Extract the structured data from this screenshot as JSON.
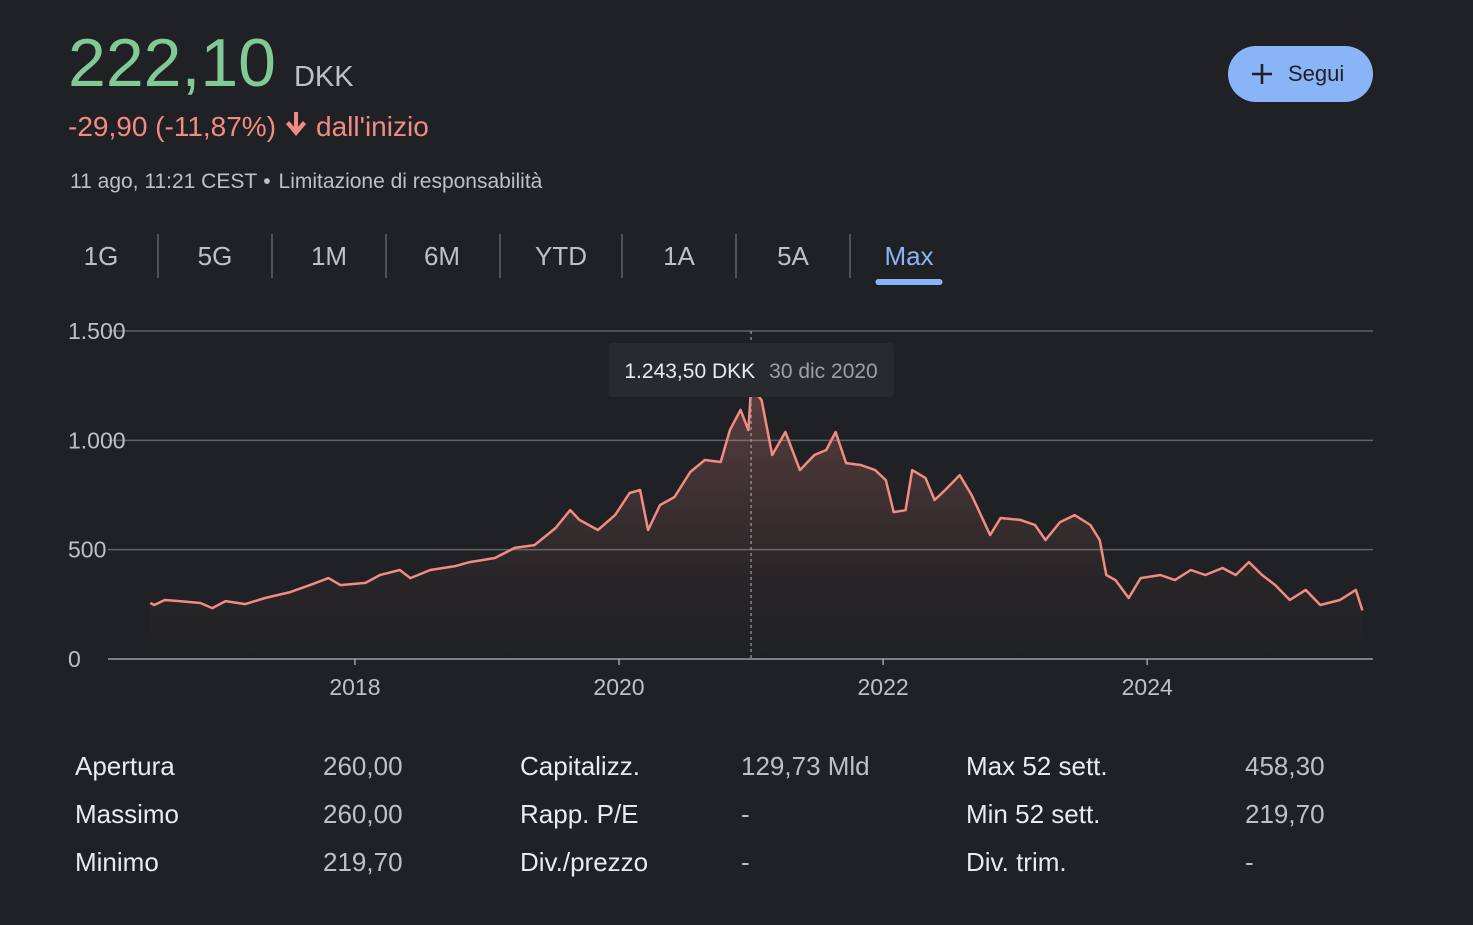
{
  "header": {
    "price": "222,10",
    "currency": "DKK",
    "change": "-29,90 (-11,87%)",
    "period": "dall'inizio",
    "timestamp": "11 ago, 11:21 CEST",
    "separator": "•",
    "disclaimer": "Limitazione di responsabilità"
  },
  "follow_button": "Segui",
  "tabs": [
    "1G",
    "5G",
    "1M",
    "6M",
    "YTD",
    "1A",
    "5A",
    "Max"
  ],
  "active_tab": "Max",
  "chart_data": {
    "type": "line",
    "color": "#f28b82",
    "x": [
      2016.45,
      2016.48,
      2016.56,
      2016.67,
      2016.83,
      2016.92,
      2017.02,
      2017.17,
      2017.32,
      2017.51,
      2017.66,
      2017.8,
      2017.89,
      2018.08,
      2018.19,
      2018.34,
      2018.42,
      2018.57,
      2018.76,
      2018.87,
      2019.06,
      2019.21,
      2019.36,
      2019.52,
      2019.63,
      2019.7,
      2019.84,
      2019.97,
      2020.08,
      2020.16,
      2020.22,
      2020.31,
      2020.42,
      2020.54,
      2020.65,
      2020.77,
      2020.84,
      2020.92,
      2020.98,
      2021.0,
      2021.08,
      2021.16,
      2021.26,
      2021.37,
      2021.48,
      2021.57,
      2021.64,
      2021.72,
      2021.83,
      2021.94,
      2022.02,
      2022.08,
      2022.17,
      2022.22,
      2022.32,
      2022.39,
      2022.47,
      2022.58,
      2022.67,
      2022.81,
      2022.89,
      2023.04,
      2023.15,
      2023.23,
      2023.34,
      2023.45,
      2023.57,
      2023.64,
      2023.69,
      2023.76,
      2023.86,
      2023.95,
      2024.1,
      2024.21,
      2024.33,
      2024.44,
      2024.57,
      2024.67,
      2024.77,
      2024.87,
      2024.97,
      2025.08,
      2025.2,
      2025.31,
      2025.46,
      2025.58,
      2025.63
    ],
    "values": [
      256,
      247,
      270,
      265,
      256,
      233,
      265,
      251,
      279,
      306,
      338,
      370,
      338,
      348,
      384,
      407,
      370,
      407,
      425,
      443,
      462,
      508,
      521,
      599,
      681,
      636,
      590,
      658,
      759,
      773,
      590,
      704,
      741,
      855,
      910,
      901,
      1047,
      1139,
      1047,
      1243.5,
      1184,
      933,
      1038,
      864,
      933,
      956,
      1038,
      896,
      887,
      864,
      818,
      672,
      681,
      864,
      828,
      727,
      773,
      841,
      750,
      567,
      645,
      636,
      613,
      544,
      626,
      658,
      613,
      544,
      384,
      361,
      279,
      370,
      384,
      361,
      407,
      384,
      416,
      384,
      443,
      384,
      338,
      270,
      316,
      247,
      270,
      316,
      222.1
    ],
    "xlim": [
      2016.13,
      2025.71
    ],
    "xticks": [
      2018,
      2020,
      2022,
      2024
    ],
    "ylim": [
      0,
      1500
    ],
    "yticks": [
      {
        "value": 0,
        "label": "0"
      },
      {
        "value": 500,
        "label": "500"
      },
      {
        "value": 1000,
        "label": "1.000"
      },
      {
        "value": 1500,
        "label": "1.500"
      }
    ],
    "grid": true
  },
  "tooltip": {
    "price": "1.243,50 DKK",
    "date": "30 dic 2020"
  },
  "stats": [
    [
      [
        "Apertura",
        "260,00"
      ],
      [
        "Massimo",
        "260,00"
      ],
      [
        "Minimo",
        "219,70"
      ]
    ],
    [
      [
        "Capitalizz.",
        "129,73 Mld"
      ],
      [
        "Rapp. P/E",
        "-"
      ],
      [
        "Div./prezzo",
        "-"
      ]
    ],
    [
      [
        "Max 52 sett.",
        "458,30"
      ],
      [
        "Min 52 sett.",
        "219,70"
      ],
      [
        "Div. trim.",
        "-"
      ]
    ]
  ]
}
